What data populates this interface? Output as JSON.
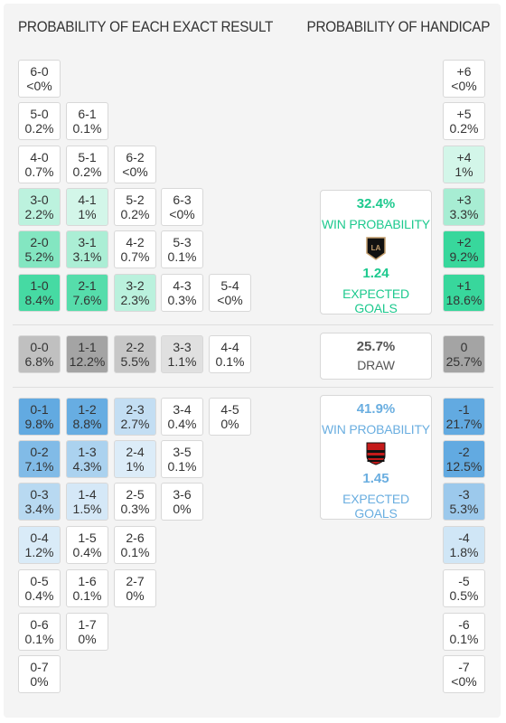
{
  "header": {
    "left": "PROBABILITY OF EACH EXACT RESULT",
    "right": "PROBABILITY OF HANDICAP"
  },
  "colors": {
    "home_accent": "#1dc98e",
    "away_accent": "#6aaee0",
    "draw_accent": "#555555"
  },
  "home_panel": {
    "win_pct": "32.4%",
    "win_label": "WIN PROBABILITY",
    "logo_icon": "lafc-crest-icon",
    "expected_goals": "1.24",
    "expected_label": "EXPECTED GOALS"
  },
  "draw_panel": {
    "pct": "25.7%",
    "label": "DRAW"
  },
  "away_panel": {
    "win_pct": "41.9%",
    "win_label": "WIN PROBABILITY",
    "logo_icon": "flamengo-crest-icon",
    "expected_goals": "1.45",
    "expected_label": "EXPECTED GOALS"
  },
  "chart_data": {
    "type": "table",
    "home_wins": [
      [
        {
          "score": "6-0",
          "p": "<0%"
        }
      ],
      [
        {
          "score": "5-0",
          "p": "0.2%"
        },
        {
          "score": "6-1",
          "p": "0.1%"
        }
      ],
      [
        {
          "score": "4-0",
          "p": "0.7%"
        },
        {
          "score": "5-1",
          "p": "0.2%"
        },
        {
          "score": "6-2",
          "p": "<0%"
        }
      ],
      [
        {
          "score": "3-0",
          "p": "2.2%"
        },
        {
          "score": "4-1",
          "p": "1%"
        },
        {
          "score": "5-2",
          "p": "0.2%"
        },
        {
          "score": "6-3",
          "p": "<0%"
        }
      ],
      [
        {
          "score": "2-0",
          "p": "5.2%"
        },
        {
          "score": "3-1",
          "p": "3.1%"
        },
        {
          "score": "4-2",
          "p": "0.7%"
        },
        {
          "score": "5-3",
          "p": "0.1%"
        }
      ],
      [
        {
          "score": "1-0",
          "p": "8.4%"
        },
        {
          "score": "2-1",
          "p": "7.6%"
        },
        {
          "score": "3-2",
          "p": "2.3%"
        },
        {
          "score": "4-3",
          "p": "0.3%"
        },
        {
          "score": "5-4",
          "p": "<0%"
        }
      ]
    ],
    "draws": [
      {
        "score": "0-0",
        "p": "6.8%"
      },
      {
        "score": "1-1",
        "p": "12.2%"
      },
      {
        "score": "2-2",
        "p": "5.5%"
      },
      {
        "score": "3-3",
        "p": "1.1%"
      },
      {
        "score": "4-4",
        "p": "0.1%"
      }
    ],
    "away_wins": [
      [
        {
          "score": "0-1",
          "p": "9.8%"
        },
        {
          "score": "1-2",
          "p": "8.8%"
        },
        {
          "score": "2-3",
          "p": "2.7%"
        },
        {
          "score": "3-4",
          "p": "0.4%"
        },
        {
          "score": "4-5",
          "p": "0%"
        }
      ],
      [
        {
          "score": "0-2",
          "p": "7.1%"
        },
        {
          "score": "1-3",
          "p": "4.3%"
        },
        {
          "score": "2-4",
          "p": "1%"
        },
        {
          "score": "3-5",
          "p": "0.1%"
        }
      ],
      [
        {
          "score": "0-3",
          "p": "3.4%"
        },
        {
          "score": "1-4",
          "p": "1.5%"
        },
        {
          "score": "2-5",
          "p": "0.3%"
        },
        {
          "score": "3-6",
          "p": "0%"
        }
      ],
      [
        {
          "score": "0-4",
          "p": "1.2%"
        },
        {
          "score": "1-5",
          "p": "0.4%"
        },
        {
          "score": "2-6",
          "p": "0.1%"
        }
      ],
      [
        {
          "score": "0-5",
          "p": "0.4%"
        },
        {
          "score": "1-6",
          "p": "0.1%"
        },
        {
          "score": "2-7",
          "p": "0%"
        }
      ],
      [
        {
          "score": "0-6",
          "p": "0.1%"
        },
        {
          "score": "1-7",
          "p": "0%"
        }
      ],
      [
        {
          "score": "0-7",
          "p": "0%"
        }
      ]
    ],
    "handicap": [
      {
        "label": "+6",
        "p": "<0%"
      },
      {
        "label": "+5",
        "p": "0.2%"
      },
      {
        "label": "+4",
        "p": "1%"
      },
      {
        "label": "+3",
        "p": "3.3%"
      },
      {
        "label": "+2",
        "p": "9.2%"
      },
      {
        "label": "+1",
        "p": "18.6%"
      },
      {
        "label": "0",
        "p": "25.7%"
      },
      {
        "label": "-1",
        "p": "21.7%"
      },
      {
        "label": "-2",
        "p": "12.5%"
      },
      {
        "label": "-3",
        "p": "5.3%"
      },
      {
        "label": "-4",
        "p": "1.8%"
      },
      {
        "label": "-5",
        "p": "0.5%"
      },
      {
        "label": "-6",
        "p": "0.1%"
      },
      {
        "label": "-7",
        "p": "<0%"
      }
    ]
  }
}
